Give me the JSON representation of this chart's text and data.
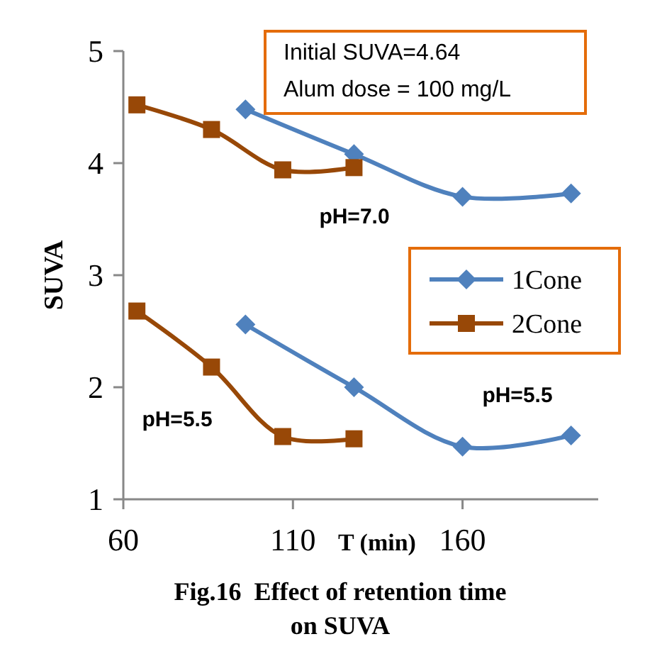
{
  "chart_data": {
    "type": "line",
    "title": "Fig.16  Effect of retention time on SUVA",
    "xlabel": "T (min)",
    "ylabel": "SUVA",
    "xlim": [
      60,
      200
    ],
    "xticks": [
      60,
      110,
      160
    ],
    "ylim": [
      1,
      5
    ],
    "yticks": [
      1,
      2,
      3,
      4,
      5
    ],
    "grid": false,
    "legend": "right",
    "series": [
      {
        "name": "1Cone",
        "color": "#4f81bd",
        "marker": "diamond",
        "x": [
          96,
          128,
          160,
          192
        ],
        "values": [
          4.48,
          4.08,
          3.7,
          3.73
        ]
      },
      {
        "name": "2Cone",
        "color": "#984807",
        "marker": "square",
        "x": [
          64,
          86,
          107,
          128
        ],
        "values": [
          4.52,
          4.3,
          3.94,
          3.96
        ]
      },
      {
        "color": "#4f81bd",
        "marker": "diamond",
        "x": [
          96,
          128,
          160,
          192
        ],
        "values": [
          2.56,
          2.0,
          1.47,
          1.57
        ]
      },
      {
        "color": "#984807",
        "marker": "square",
        "x": [
          64,
          86,
          107,
          128
        ],
        "values": [
          2.68,
          2.18,
          1.56,
          1.54
        ]
      }
    ],
    "annotations": [
      "Initial SUVA=4.64",
      "Alum dose = 100 mg/L",
      "pH=7.0",
      "pH=5.5",
      "pH=5.5"
    ]
  }
}
